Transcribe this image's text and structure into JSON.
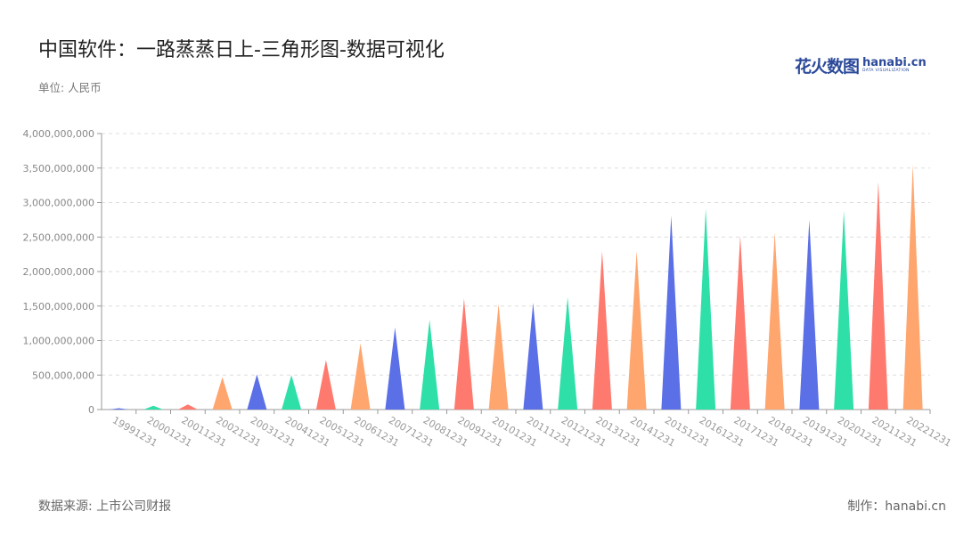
{
  "title": "中国软件：一路蒸蒸日上-三角形图-数据可视化",
  "unit_label": "单位: 人民币",
  "logo": {
    "cn": "花火数图",
    "en": "hanabi.cn",
    "sub": "DATA VISUALIZATION"
  },
  "footer": {
    "source": "数据来源: 上市公司财报",
    "maker": "制作：hanabi.cn"
  },
  "colors": {
    "palette": [
      "#5b6fe6",
      "#2ee0a8",
      "#ff7a6e",
      "#ffa56e"
    ],
    "grid": "#dddddd",
    "axis": "#999999"
  },
  "chart_data": {
    "type": "bar",
    "mark_shape": "triangle",
    "grid": true,
    "ylim": [
      0,
      4000000000
    ],
    "yticks": [
      0,
      500000000,
      1000000000,
      1500000000,
      2000000000,
      2500000000,
      3000000000,
      3500000000,
      4000000000
    ],
    "ytick_labels": [
      "0",
      "500,000,000",
      "1,000,000,000",
      "1,500,000,000",
      "2,000,000,000",
      "2,500,000,000",
      "3,000,000,000",
      "3,500,000,000",
      "4,000,000,000"
    ],
    "categories": [
      "19991231",
      "20001231",
      "20011231",
      "20021231",
      "20031231",
      "20041231",
      "20051231",
      "20061231",
      "20071231",
      "20081231",
      "20091231",
      "20101231",
      "20111231",
      "20121231",
      "20131231",
      "20141231",
      "20151231",
      "20161231",
      "20171231",
      "20181231",
      "20191231",
      "20201231",
      "20211231",
      "20221231"
    ],
    "values": [
      20000000,
      55000000,
      75000000,
      470000000,
      510000000,
      500000000,
      720000000,
      960000000,
      1190000000,
      1300000000,
      1610000000,
      1530000000,
      1550000000,
      1630000000,
      2300000000,
      2300000000,
      2810000000,
      2910000000,
      2520000000,
      2570000000,
      2750000000,
      2880000000,
      3300000000,
      3550000000
    ]
  }
}
